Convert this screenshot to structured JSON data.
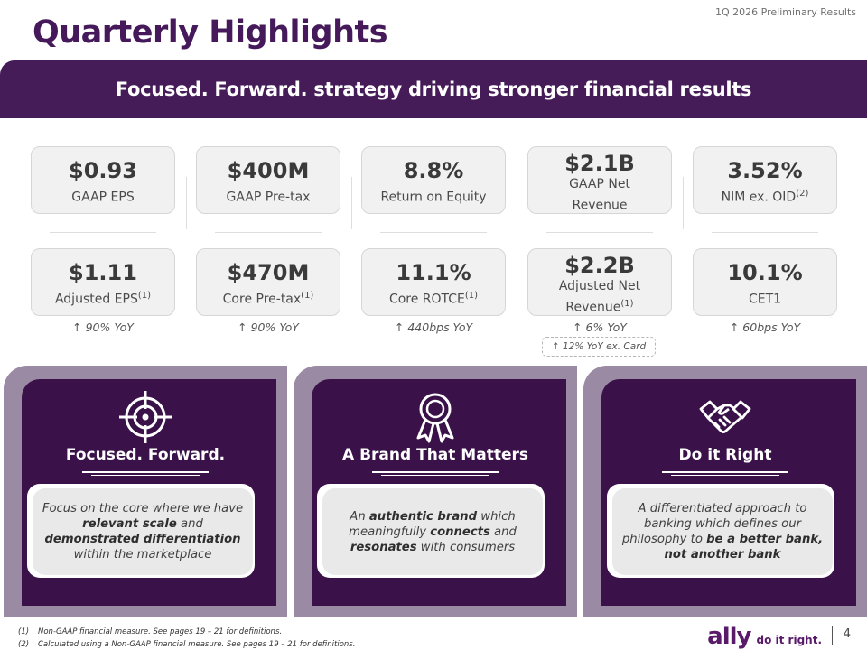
{
  "header": {
    "doc_label": "1Q 2026 Preliminary Results",
    "title": "Quarterly Highlights",
    "banner": "Focused. Forward. strategy driving stronger financial results"
  },
  "metrics_top": [
    {
      "value": "$0.93",
      "label": "GAAP EPS",
      "sup": ""
    },
    {
      "value": "$400M",
      "label": "GAAP Pre-tax",
      "sup": ""
    },
    {
      "value": "8.8%",
      "label": "Return on Equity",
      "sup": ""
    },
    {
      "value": "$2.1B",
      "label": "GAAP Net Revenue",
      "sup": ""
    },
    {
      "value": "3.52%",
      "label": "NIM ex. OID",
      "sup": "(2)"
    }
  ],
  "metrics_bottom": [
    {
      "value": "$1.11",
      "label": "Adjusted EPS",
      "sup": "(1)"
    },
    {
      "value": "$470M",
      "label": "Core Pre-tax",
      "sup": "(1)"
    },
    {
      "value": "11.1%",
      "label": "Core ROTCE",
      "sup": "(1)"
    },
    {
      "value": "$2.2B",
      "label": "Adjusted Net Revenue",
      "sup": "(1)"
    },
    {
      "value": "10.1%",
      "label": "CET1",
      "sup": ""
    }
  ],
  "yoy": [
    "↑ 90% YoY",
    "↑ 90% YoY",
    "↑ 440bps YoY",
    "↑ 6% YoY",
    "↑ 60bps YoY"
  ],
  "yoy_extra": "↑ 12% YoY ex. Card",
  "cards": [
    {
      "icon": "target-icon",
      "title": "Focused. Forward."
    },
    {
      "icon": "award-ribbon-icon",
      "title": "A Brand That Matters"
    },
    {
      "icon": "handshake-icon",
      "title": "Do it Right"
    }
  ],
  "card_text": {
    "c1_a": "Focus on the core where we have ",
    "c1_b": "relevant scale",
    "c1_c": " and ",
    "c1_d": "demonstrated differentiation",
    "c1_e": " within the marketplace",
    "c2_a": "An ",
    "c2_b": "authentic brand",
    "c2_c": " which meaningfully ",
    "c2_d": "connects",
    "c2_e": " and ",
    "c2_f": "resonates",
    "c2_g": " with consumers",
    "c3_a": "A differentiated approach to banking which defines our philosophy to ",
    "c3_b": "be a better bank, not another bank"
  },
  "footnotes": [
    {
      "num": "(1)",
      "text": "Non-GAAP financial measure. See pages 19 – 21 for definitions."
    },
    {
      "num": "(2)",
      "text": "Calculated using a Non-GAAP financial measure. See pages 19 – 21 for definitions."
    }
  ],
  "footer": {
    "brand": "ally",
    "tagline": "do it right.",
    "page": "4"
  },
  "colors": {
    "brand_purple": "#451b58",
    "card_frame": "#9b8aa3",
    "card_inner": "#3a1249"
  }
}
